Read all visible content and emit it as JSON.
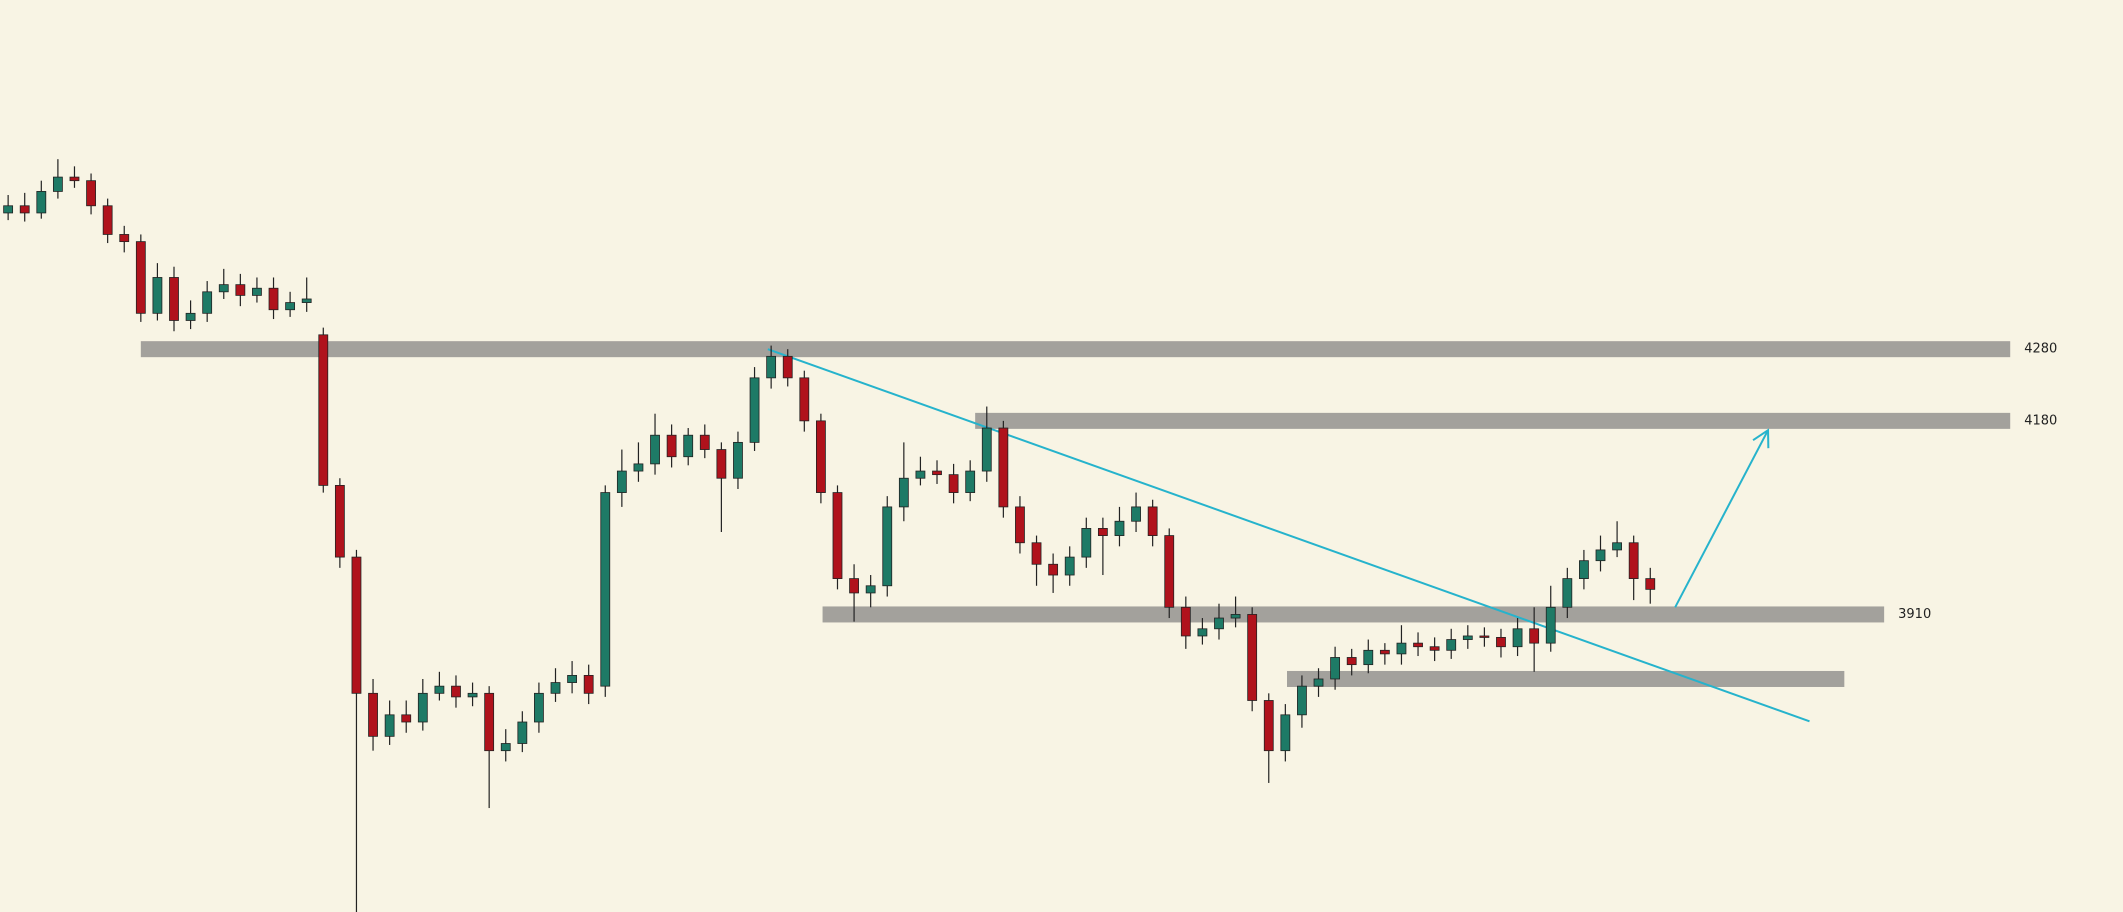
{
  "chart_data": {
    "type": "candlestick",
    "open": [
      4470,
      4480,
      4470,
      4500,
      4520,
      4515,
      4480,
      4440,
      4430,
      4330,
      4380,
      4320,
      4330,
      4360,
      4370,
      4355,
      4365,
      4335,
      4345,
      4300,
      4090,
      3990,
      3800,
      3740,
      3770,
      3760,
      3800,
      3810,
      3795,
      3800,
      3720,
      3730,
      3760,
      3800,
      3815,
      3825,
      3810,
      4080,
      4110,
      4120,
      4160,
      4130,
      4160,
      4140,
      4100,
      4150,
      4240,
      4270,
      4240,
      4180,
      4080,
      3960,
      3940,
      3950,
      4060,
      4100,
      4110,
      4105,
      4080,
      4110,
      4170,
      4060,
      4010,
      3980,
      3965,
      3990,
      4030,
      4020,
      4040,
      4060,
      4020,
      3920,
      3880,
      3890,
      3905,
      3910,
      3790,
      3720,
      3770,
      3810,
      3820,
      3850,
      3840,
      3860,
      3855,
      3870,
      3865,
      3860,
      3875,
      3880,
      3878,
      3865,
      3890,
      3870,
      3920,
      3960,
      3985,
      4000,
      4010,
      3960
    ],
    "high": [
      4495,
      4498,
      4515,
      4545,
      4535,
      4525,
      4490,
      4452,
      4440,
      4400,
      4395,
      4348,
      4375,
      4392,
      4385,
      4380,
      4380,
      4360,
      4380,
      4310,
      4100,
      4000,
      3820,
      3790,
      3790,
      3820,
      3830,
      3825,
      3815,
      3810,
      3750,
      3775,
      3815,
      3835,
      3845,
      3840,
      4090,
      4140,
      4150,
      4190,
      4175,
      4170,
      4175,
      4150,
      4165,
      4255,
      4285,
      4280,
      4250,
      4190,
      4090,
      3980,
      3965,
      4075,
      4150,
      4130,
      4125,
      4120,
      4125,
      4200,
      4180,
      4075,
      4020,
      3995,
      4005,
      4045,
      4045,
      4060,
      4080,
      4070,
      4030,
      3935,
      3905,
      3925,
      3935,
      3920,
      3800,
      3785,
      3825,
      3835,
      3865,
      3862,
      3875,
      3870,
      3895,
      3885,
      3878,
      3890,
      3895,
      3892,
      3890,
      3905,
      3920,
      3950,
      3975,
      4000,
      4020,
      4040,
      4020,
      3975
    ],
    "low": [
      4460,
      4458,
      4462,
      4490,
      4505,
      4468,
      4428,
      4415,
      4318,
      4320,
      4305,
      4308,
      4318,
      4350,
      4340,
      4345,
      4322,
      4325,
      4332,
      4080,
      3975,
      3495,
      3720,
      3728,
      3745,
      3748,
      3790,
      3780,
      3782,
      3640,
      3705,
      3718,
      3745,
      3788,
      3800,
      3785,
      3795,
      4060,
      4095,
      4105,
      4115,
      4118,
      4128,
      4025,
      4085,
      4138,
      4225,
      4228,
      4165,
      4065,
      3945,
      3900,
      3920,
      3935,
      4040,
      4090,
      4092,
      4065,
      4068,
      4095,
      4045,
      3995,
      3950,
      3940,
      3950,
      3975,
      3965,
      4005,
      4025,
      4005,
      3905,
      3862,
      3868,
      3875,
      3892,
      3775,
      3675,
      3705,
      3752,
      3795,
      3805,
      3825,
      3828,
      3840,
      3840,
      3852,
      3845,
      3848,
      3862,
      3865,
      3850,
      3852,
      3830,
      3858,
      3905,
      3945,
      3970,
      3990,
      3930,
      3925
    ],
    "close": [
      4480,
      4470,
      4500,
      4520,
      4515,
      4480,
      4440,
      4430,
      4330,
      4380,
      4320,
      4330,
      4360,
      4370,
      4355,
      4365,
      4335,
      4345,
      4350,
      4090,
      3990,
      3800,
      3740,
      3770,
      3760,
      3800,
      3810,
      3795,
      3800,
      3720,
      3730,
      3760,
      3800,
      3815,
      3825,
      3800,
      4080,
      4110,
      4120,
      4160,
      4130,
      4160,
      4140,
      4100,
      4150,
      4240,
      4270,
      4240,
      4180,
      4080,
      3960,
      3940,
      3950,
      4060,
      4100,
      4110,
      4105,
      4080,
      4110,
      4170,
      4060,
      4010,
      3980,
      3965,
      3990,
      4030,
      4020,
      4040,
      4060,
      4020,
      3920,
      3880,
      3890,
      3905,
      3910,
      3790,
      3720,
      3770,
      3810,
      3820,
      3850,
      3840,
      3860,
      3855,
      3870,
      3865,
      3860,
      3875,
      3880,
      3878,
      3865,
      3890,
      3870,
      3920,
      3960,
      3985,
      4000,
      4010,
      3960,
      3945
    ],
    "colors": {
      "up": "#1e7a66",
      "down": "#b0121c"
    },
    "xlim": [
      -0.49,
      127.5
    ],
    "ylim": [
      3495,
      4767
    ],
    "level_color": "#a3a19c",
    "levels": [
      {
        "value": 4280,
        "from": 8.0,
        "to": 120.7,
        "labeled": true
      },
      {
        "value": 4180,
        "from": 58.3,
        "to": 120.7,
        "labeled": true
      },
      {
        "value": 3910,
        "from": 49.1,
        "to": 113.1,
        "labeled": true
      },
      {
        "value": 3820,
        "from": 77.1,
        "to": 110.7,
        "labeled": false
      }
    ],
    "trendline": {
      "x": [
        45.8,
        108.6
      ],
      "y": [
        4280,
        3761
      ],
      "color": "#26b3cc"
    },
    "arrow": {
      "x": [
        100.5,
        106.1
      ],
      "y": [
        3920,
        4167
      ],
      "color": "#26b3cc"
    }
  }
}
